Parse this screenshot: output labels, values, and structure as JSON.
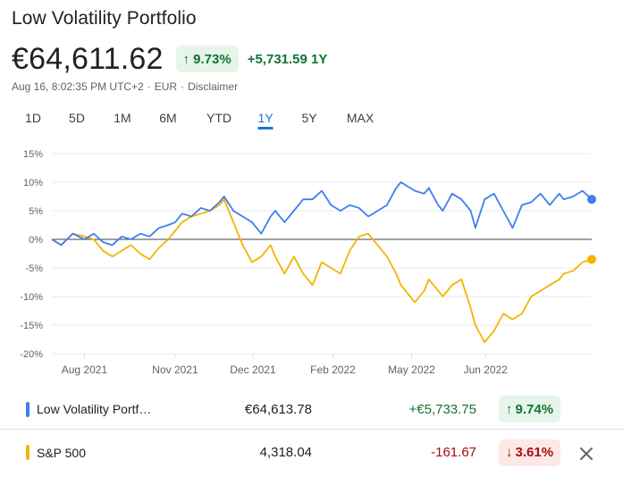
{
  "portfolio": {
    "title": "Low Volatility Portfolio",
    "price": "€64,611.62",
    "change_pct": "9.73%",
    "change_abs": "+5,731.59 1Y",
    "meta": {
      "timestamp": "Aug 16, 8:02:35 PM UTC+2",
      "currency": "EUR",
      "disclaimer": "Disclaimer"
    }
  },
  "tabs": [
    {
      "label": "1D",
      "active": false
    },
    {
      "label": "5D",
      "active": false
    },
    {
      "label": "1M",
      "active": false
    },
    {
      "label": "6M",
      "active": false
    },
    {
      "label": "YTD",
      "active": false
    },
    {
      "label": "1Y",
      "active": true
    },
    {
      "label": "5Y",
      "active": false
    },
    {
      "label": "MAX",
      "active": false
    }
  ],
  "legend": [
    {
      "name": "Low Volatility Portf…",
      "value": "€64,613.78",
      "change": "+€5,733.75",
      "pct": "9.74%",
      "direction": "up",
      "color": "#3e7ef0"
    },
    {
      "name": "S&P 500",
      "value": "4,318.04",
      "change": "-161.67",
      "pct": "3.61%",
      "direction": "down",
      "color": "#f4b400"
    }
  ],
  "icons": {
    "up": "arrow-up-icon",
    "down": "arrow-down-icon",
    "close": "close-icon"
  },
  "colors": {
    "up": "#137333",
    "down": "#a50e0e",
    "accent": "#1a73e8"
  },
  "chart_data": {
    "type": "line",
    "ylim": [
      -20,
      15
    ],
    "y_ticks": [
      15,
      10,
      5,
      0,
      -5,
      -10,
      -15,
      -20
    ],
    "y_tick_labels": [
      "15%",
      "10%",
      "5%",
      "0%",
      "-5%",
      "-10%",
      "-15%",
      "-20%"
    ],
    "x_ticks": [
      {
        "label": "Aug 2021",
        "x": 0.07
      },
      {
        "label": "Nov 2021",
        "x": 0.265
      },
      {
        "label": "Dec 2021",
        "x": 0.432
      },
      {
        "label": "Feb 2022",
        "x": 0.604
      },
      {
        "label": "May 2022",
        "x": 0.773
      },
      {
        "label": "Jun 2022",
        "x": 0.932
      }
    ],
    "series": [
      {
        "name": "Low Volatility Portfolio",
        "color": "#3e7ef0",
        "values": [
          [
            0.0,
            0
          ],
          [
            0.02,
            -1
          ],
          [
            0.045,
            1
          ],
          [
            0.07,
            0
          ],
          [
            0.09,
            1
          ],
          [
            0.11,
            -0.5
          ],
          [
            0.13,
            -1
          ],
          [
            0.15,
            0.5
          ],
          [
            0.17,
            0
          ],
          [
            0.19,
            1
          ],
          [
            0.21,
            0.5
          ],
          [
            0.23,
            2
          ],
          [
            0.25,
            2.5
          ],
          [
            0.265,
            3
          ],
          [
            0.28,
            4.5
          ],
          [
            0.3,
            4
          ],
          [
            0.32,
            5.5
          ],
          [
            0.34,
            5
          ],
          [
            0.36,
            6.5
          ],
          [
            0.37,
            7.5
          ],
          [
            0.39,
            5
          ],
          [
            0.41,
            4
          ],
          [
            0.43,
            3
          ],
          [
            0.45,
            1
          ],
          [
            0.47,
            4
          ],
          [
            0.48,
            5
          ],
          [
            0.5,
            3
          ],
          [
            0.52,
            5
          ],
          [
            0.54,
            7
          ],
          [
            0.56,
            7
          ],
          [
            0.58,
            8.5
          ],
          [
            0.6,
            6
          ],
          [
            0.62,
            5
          ],
          [
            0.64,
            6
          ],
          [
            0.66,
            5.5
          ],
          [
            0.68,
            4
          ],
          [
            0.7,
            5
          ],
          [
            0.72,
            6
          ],
          [
            0.74,
            9
          ],
          [
            0.75,
            10
          ],
          [
            0.77,
            9
          ],
          [
            0.78,
            8.5
          ],
          [
            0.8,
            8
          ],
          [
            0.81,
            9
          ],
          [
            0.83,
            6
          ],
          [
            0.84,
            5
          ],
          [
            0.86,
            8
          ],
          [
            0.88,
            7
          ],
          [
            0.9,
            5
          ],
          [
            0.91,
            2
          ],
          [
            0.93,
            7
          ],
          [
            0.95,
            8
          ],
          [
            0.97,
            5
          ],
          [
            0.99,
            2
          ],
          [
            1.01,
            6
          ],
          [
            1.03,
            6.5
          ],
          [
            1.05,
            8
          ],
          [
            1.07,
            6
          ],
          [
            1.09,
            8
          ],
          [
            1.1,
            7
          ],
          [
            1.12,
            7.5
          ],
          [
            1.14,
            8.5
          ],
          [
            1.16,
            7
          ]
        ]
      },
      {
        "name": "S&P 500",
        "color": "#f4b400",
        "values": [
          [
            0.0,
            0
          ],
          [
            0.02,
            -1
          ],
          [
            0.045,
            1
          ],
          [
            0.07,
            0.5
          ],
          [
            0.09,
            0
          ],
          [
            0.11,
            -2
          ],
          [
            0.13,
            -3
          ],
          [
            0.15,
            -2
          ],
          [
            0.17,
            -1
          ],
          [
            0.19,
            -2.5
          ],
          [
            0.21,
            -3.5
          ],
          [
            0.23,
            -1.5
          ],
          [
            0.25,
            0
          ],
          [
            0.265,
            1.5
          ],
          [
            0.28,
            3
          ],
          [
            0.3,
            4
          ],
          [
            0.32,
            4.5
          ],
          [
            0.34,
            5
          ],
          [
            0.36,
            6
          ],
          [
            0.37,
            7
          ],
          [
            0.39,
            3
          ],
          [
            0.41,
            -1
          ],
          [
            0.43,
            -4
          ],
          [
            0.45,
            -3
          ],
          [
            0.47,
            -1
          ],
          [
            0.48,
            -3
          ],
          [
            0.5,
            -6
          ],
          [
            0.52,
            -3
          ],
          [
            0.54,
            -6
          ],
          [
            0.56,
            -8
          ],
          [
            0.58,
            -4
          ],
          [
            0.6,
            -5
          ],
          [
            0.62,
            -6
          ],
          [
            0.64,
            -2
          ],
          [
            0.66,
            0.5
          ],
          [
            0.68,
            1
          ],
          [
            0.7,
            -1
          ],
          [
            0.72,
            -3
          ],
          [
            0.74,
            -6
          ],
          [
            0.75,
            -8
          ],
          [
            0.77,
            -10
          ],
          [
            0.78,
            -11
          ],
          [
            0.8,
            -9
          ],
          [
            0.81,
            -7
          ],
          [
            0.83,
            -9
          ],
          [
            0.84,
            -10
          ],
          [
            0.86,
            -8
          ],
          [
            0.88,
            -7
          ],
          [
            0.9,
            -12
          ],
          [
            0.91,
            -15
          ],
          [
            0.93,
            -18
          ],
          [
            0.95,
            -16
          ],
          [
            0.97,
            -13
          ],
          [
            0.99,
            -14
          ],
          [
            1.01,
            -13
          ],
          [
            1.03,
            -10
          ],
          [
            1.05,
            -9
          ],
          [
            1.07,
            -8
          ],
          [
            1.09,
            -7
          ],
          [
            1.1,
            -6
          ],
          [
            1.12,
            -5.5
          ],
          [
            1.14,
            -4
          ],
          [
            1.16,
            -3.5
          ]
        ]
      }
    ]
  }
}
